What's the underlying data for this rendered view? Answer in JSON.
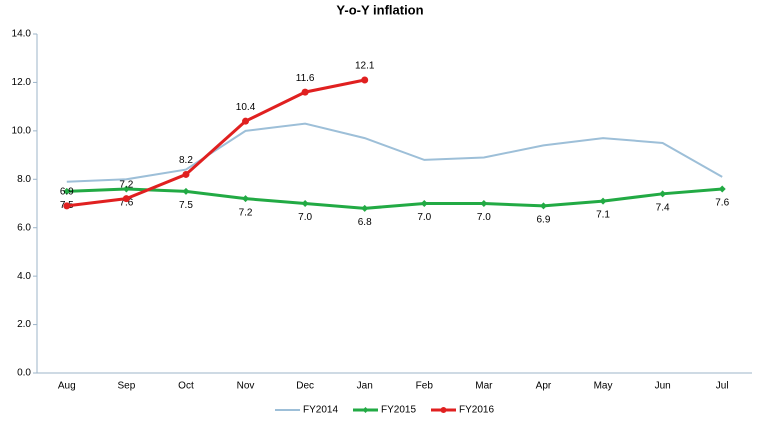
{
  "chart_data": {
    "type": "line",
    "title": "Y-o-Y inflation",
    "categories": [
      "Aug",
      "Sep",
      "Oct",
      "Nov",
      "Dec",
      "Jan",
      "Feb",
      "Mar",
      "Apr",
      "May",
      "Jun",
      "Jul"
    ],
    "series": [
      {
        "name": "FY2014",
        "color": "#9dbfd8",
        "values": [
          7.9,
          8.0,
          8.4,
          10.0,
          10.3,
          9.7,
          8.8,
          8.9,
          9.4,
          9.7,
          9.5,
          8.1
        ]
      },
      {
        "name": "FY2015",
        "color": "#22aa44",
        "values": [
          7.5,
          7.6,
          7.5,
          7.2,
          7.0,
          6.8,
          7.0,
          7.0,
          6.9,
          7.1,
          7.4,
          7.6
        ],
        "value_labels": [
          "7.5",
          "7.6",
          "7.5",
          "7.2",
          "7.0",
          "6.8",
          "7.0",
          "7.0",
          "6.9",
          "7.1",
          "7.4",
          "7.6"
        ]
      },
      {
        "name": "FY2016",
        "color": "#e02020",
        "values": [
          6.9,
          7.2,
          8.2,
          10.4,
          11.6,
          12.1,
          null,
          null,
          null,
          null,
          null,
          null
        ],
        "value_labels": [
          "6.9",
          "7.2",
          "8.2",
          "10.4",
          "11.6",
          "12.1",
          null,
          null,
          null,
          null,
          null,
          null
        ]
      }
    ],
    "ylim": [
      0,
      14
    ],
    "yticks": [
      {
        "value": 0,
        "label": "0.0"
      },
      {
        "value": 2,
        "label": "2.0"
      },
      {
        "value": 4,
        "label": "4.0"
      },
      {
        "value": 6,
        "label": "6.0"
      },
      {
        "value": 8,
        "label": "8.0"
      },
      {
        "value": 10,
        "label": "10.0"
      },
      {
        "value": 12,
        "label": "12.0"
      },
      {
        "value": 14,
        "label": "14.0"
      }
    ],
    "grid": false,
    "legend": "bottom"
  }
}
